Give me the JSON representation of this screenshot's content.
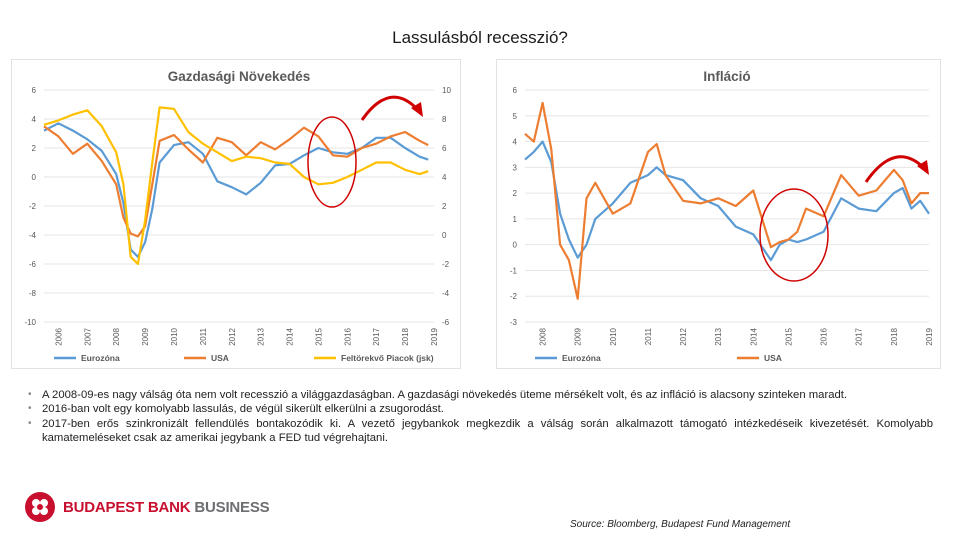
{
  "slide": {
    "title": "Lassulásból recesszió?",
    "bullets": [
      "A 2008-09-es nagy válság óta nem volt recesszió a világgazdaságban. A gazdasági növekedés üteme mérsékelt volt, és az infláció is alacsony szinteken maradt.",
      "2016-ban volt egy komolyabb lassulás, de végül sikerült elkerülni a zsugorodást.",
      "2017-ben erős szinkronizált fellendülés bontakozódik ki. A vezető jegybankok megkezdik a válság során alkalmazott támogató intézkedéseik kivezetését. Komolyabb kamatemeléseket csak az amerikai jegybank a FED tud végrehajtani."
    ],
    "bullet_marker": "•",
    "logo": {
      "part1": "BUDAPEST BANK",
      "part2": "BUSINESS"
    },
    "source": "Source: Bloomberg, Budapest Fund Management"
  },
  "colors": {
    "eurozone": "#5b9bd5",
    "usa": "#ed7d31",
    "em": "#ffc000",
    "highlight": "#d00000",
    "grid": "#e6e6e6",
    "axis_text": "#595959"
  },
  "chart_data": [
    {
      "type": "line",
      "title": "Gazdasági Növekedés",
      "x_range": [
        2006.0,
        2019.5
      ],
      "x_ticks": [
        "2006",
        "2007",
        "2008",
        "2009",
        "2010",
        "2011",
        "2012",
        "2013",
        "2014",
        "2015",
        "2016",
        "2017",
        "2018",
        "2019"
      ],
      "y_left": {
        "range": [
          -10,
          6
        ],
        "ticks": [
          "6",
          "4",
          "2",
          "0",
          "-2",
          "-4",
          "-6",
          "-8",
          "-10"
        ]
      },
      "y_right": {
        "range": [
          -6,
          10
        ],
        "ticks": [
          "10",
          "8",
          "6",
          "4",
          "2",
          "0",
          "-2",
          "-4",
          "-6"
        ]
      },
      "series": [
        {
          "name": "Eurozóna",
          "axis": "left",
          "color_key": "eurozone",
          "x": [
            2006.0,
            2006.5,
            2007.0,
            2007.5,
            2008.0,
            2008.5,
            2008.75,
            2009.0,
            2009.25,
            2009.5,
            2009.75,
            2010.0,
            2010.5,
            2011.0,
            2011.5,
            2012.0,
            2012.5,
            2013.0,
            2013.5,
            2014.0,
            2014.5,
            2015.0,
            2015.5,
            2016.0,
            2016.5,
            2017.0,
            2017.5,
            2018.0,
            2018.5,
            2019.0,
            2019.3
          ],
          "y": [
            3.2,
            3.7,
            3.2,
            2.6,
            1.8,
            0.2,
            -1.8,
            -5.0,
            -5.5,
            -4.5,
            -2.2,
            1.0,
            2.2,
            2.4,
            1.6,
            -0.3,
            -0.7,
            -1.2,
            -0.4,
            0.8,
            0.9,
            1.5,
            2.0,
            1.7,
            1.6,
            2.0,
            2.7,
            2.7,
            2.0,
            1.4,
            1.2
          ]
        },
        {
          "name": "USA",
          "axis": "left",
          "color_key": "usa",
          "x": [
            2006.0,
            2006.5,
            2007.0,
            2007.5,
            2008.0,
            2008.5,
            2008.75,
            2009.0,
            2009.25,
            2009.5,
            2009.75,
            2010.0,
            2010.5,
            2011.0,
            2011.5,
            2012.0,
            2012.5,
            2013.0,
            2013.5,
            2014.0,
            2014.5,
            2015.0,
            2015.5,
            2016.0,
            2016.5,
            2017.0,
            2017.5,
            2018.0,
            2018.5,
            2019.0,
            2019.3
          ],
          "y": [
            3.5,
            2.8,
            1.6,
            2.3,
            1.1,
            -0.5,
            -2.8,
            -3.9,
            -4.1,
            -3.4,
            -0.5,
            2.5,
            2.9,
            1.9,
            1.0,
            2.7,
            2.4,
            1.5,
            2.4,
            1.9,
            2.6,
            3.4,
            2.8,
            1.5,
            1.4,
            2.0,
            2.3,
            2.8,
            3.1,
            2.5,
            2.2
          ]
        },
        {
          "name": "Feltörekvő Piacok (jsk)",
          "axis": "right",
          "color_key": "em",
          "x": [
            2006.0,
            2006.5,
            2007.0,
            2007.5,
            2008.0,
            2008.5,
            2008.75,
            2009.0,
            2009.25,
            2009.5,
            2009.75,
            2010.0,
            2010.5,
            2011.0,
            2011.5,
            2012.0,
            2012.5,
            2013.0,
            2013.5,
            2014.0,
            2014.5,
            2015.0,
            2015.5,
            2016.0,
            2016.5,
            2017.0,
            2017.5,
            2018.0,
            2018.5,
            2019.0,
            2019.3
          ],
          "y": [
            7.6,
            7.9,
            8.3,
            8.6,
            7.5,
            5.7,
            3.5,
            -1.5,
            -2.0,
            1.0,
            5.0,
            8.8,
            8.7,
            7.1,
            6.3,
            5.7,
            5.1,
            5.4,
            5.3,
            5.0,
            4.9,
            4.0,
            3.5,
            3.6,
            4.0,
            4.5,
            5.0,
            5.0,
            4.5,
            4.2,
            4.4
          ]
        }
      ]
    },
    {
      "type": "line",
      "title": "Infláció",
      "x_range": [
        2008.0,
        2019.5
      ],
      "x_ticks": [
        "2008",
        "2009",
        "2010",
        "2011",
        "2012",
        "2013",
        "2014",
        "2015",
        "2016",
        "2017",
        "2018",
        "2019"
      ],
      "y_left": {
        "range": [
          -3,
          6
        ],
        "ticks": [
          "6",
          "5",
          "4",
          "3",
          "2",
          "1",
          "0",
          "-1",
          "-2",
          "-3"
        ]
      },
      "series": [
        {
          "name": "Eurozóna",
          "axis": "left",
          "color_key": "eurozone",
          "x": [
            2008.0,
            2008.25,
            2008.5,
            2008.75,
            2009.0,
            2009.25,
            2009.5,
            2009.75,
            2010.0,
            2010.5,
            2011.0,
            2011.5,
            2011.75,
            2012.0,
            2012.5,
            2013.0,
            2013.5,
            2014.0,
            2014.5,
            2015.0,
            2015.25,
            2015.5,
            2015.75,
            2016.0,
            2016.5,
            2017.0,
            2017.5,
            2018.0,
            2018.5,
            2018.75,
            2019.0,
            2019.25,
            2019.5
          ],
          "y": [
            3.3,
            3.6,
            4.0,
            3.2,
            1.2,
            0.2,
            -0.5,
            0.0,
            1.0,
            1.6,
            2.4,
            2.7,
            3.0,
            2.7,
            2.5,
            1.8,
            1.5,
            0.7,
            0.4,
            -0.6,
            0.0,
            0.2,
            0.1,
            0.2,
            0.5,
            1.8,
            1.4,
            1.3,
            2.0,
            2.2,
            1.4,
            1.7,
            1.2
          ]
        },
        {
          "name": "USA",
          "axis": "left",
          "color_key": "usa",
          "x": [
            2008.0,
            2008.25,
            2008.5,
            2008.75,
            2009.0,
            2009.25,
            2009.5,
            2009.75,
            2010.0,
            2010.5,
            2011.0,
            2011.5,
            2011.75,
            2012.0,
            2012.5,
            2013.0,
            2013.5,
            2014.0,
            2014.5,
            2015.0,
            2015.25,
            2015.5,
            2015.75,
            2016.0,
            2016.5,
            2017.0,
            2017.5,
            2018.0,
            2018.5,
            2018.75,
            2019.0,
            2019.25,
            2019.5
          ],
          "y": [
            4.3,
            4.0,
            5.5,
            3.7,
            0.0,
            -0.6,
            -2.1,
            1.8,
            2.4,
            1.2,
            1.6,
            3.6,
            3.9,
            2.7,
            1.7,
            1.6,
            1.8,
            1.5,
            2.1,
            -0.1,
            0.1,
            0.2,
            0.5,
            1.4,
            1.1,
            2.7,
            1.9,
            2.1,
            2.9,
            2.5,
            1.6,
            2.0,
            2.0
          ]
        }
      ]
    }
  ]
}
